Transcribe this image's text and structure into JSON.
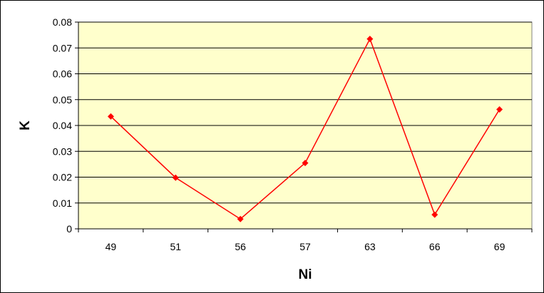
{
  "chart_data": {
    "type": "line",
    "title": "",
    "xlabel": "Ni",
    "ylabel": "K",
    "categories": [
      "49",
      "51",
      "56",
      "57",
      "63",
      "66",
      "69"
    ],
    "series": [
      {
        "values": [
          0.0435,
          0.0198,
          0.0038,
          0.0255,
          0.0735,
          0.0055,
          0.0462
        ]
      }
    ],
    "ylim": [
      0,
      0.08
    ],
    "yticks": [
      "0",
      "0.01",
      "0.02",
      "0.03",
      "0.04",
      "0.05",
      "0.06",
      "0.07",
      "0.08"
    ],
    "grid": true,
    "legend": "none",
    "colors": {
      "plot_background": "#ffffcc",
      "line": "#ff0000",
      "marker": "#ff0000",
      "gridline": "#000000",
      "frame": "#000000"
    }
  }
}
